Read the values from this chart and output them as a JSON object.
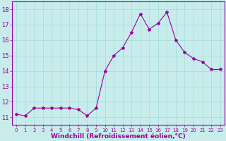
{
  "x": [
    0,
    1,
    2,
    3,
    4,
    5,
    6,
    7,
    8,
    9,
    10,
    11,
    12,
    13,
    14,
    15,
    16,
    17,
    18,
    19,
    20,
    21,
    22,
    23
  ],
  "y": [
    11.2,
    11.1,
    11.6,
    11.6,
    11.6,
    11.6,
    11.6,
    11.5,
    11.1,
    11.6,
    14.0,
    15.0,
    15.5,
    16.5,
    17.7,
    16.7,
    17.1,
    17.8,
    16.0,
    15.2,
    14.8,
    14.6,
    14.1,
    14.1
  ],
  "line_color": "#990099",
  "marker": "*",
  "marker_size": 3,
  "bg_color": "#c8ecec",
  "grid_color": "#aadddd",
  "xlabel": "Windchill (Refroidissement éolien,°C)",
  "xlabel_color": "#990099",
  "ylim": [
    10.5,
    18.5
  ],
  "xlim": [
    -0.5,
    23.5
  ],
  "yticks": [
    11,
    12,
    13,
    14,
    15,
    16,
    17,
    18
  ],
  "xticks": [
    0,
    1,
    2,
    3,
    4,
    5,
    6,
    7,
    8,
    9,
    10,
    11,
    12,
    13,
    14,
    15,
    16,
    17,
    18,
    19,
    20,
    21,
    22,
    23
  ],
  "tick_color": "#990099",
  "spine_color": "#990099",
  "xtick_fontsize": 5.0,
  "ytick_fontsize": 6.0,
  "xlabel_fontsize": 6.5
}
